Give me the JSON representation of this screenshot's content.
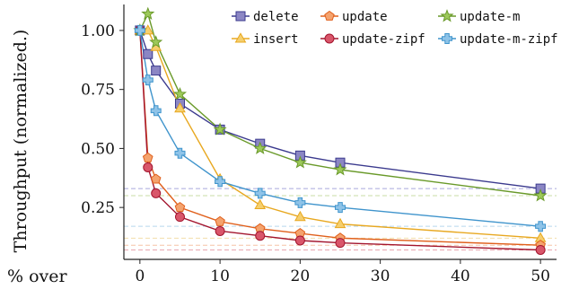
{
  "chart_data": {
    "type": "line",
    "ylabel": "Throughput (normalized.)",
    "xlabel": "% over",
    "xlim": [
      -2,
      52
    ],
    "ylim": [
      0.03,
      1.11
    ],
    "xticks": [
      0,
      10,
      20,
      30,
      40,
      50
    ],
    "yticks": [
      0.25,
      0.5,
      0.75,
      1.0
    ],
    "ytick_labels": [
      "0.25",
      "0.50",
      "0.75",
      "1.00"
    ],
    "grid": false,
    "legend_position": "top-right",
    "series": [
      {
        "name": "delete",
        "color": "#3b3a8e",
        "fill": "#8b86c4",
        "marker": "square",
        "x": [
          0,
          1,
          2,
          5,
          10,
          15,
          20,
          25,
          50
        ],
        "y": [
          1.0,
          0.9,
          0.83,
          0.69,
          0.58,
          0.52,
          0.47,
          0.44,
          0.33
        ]
      },
      {
        "name": "insert",
        "color": "#e8a820",
        "fill": "#f5cf6e",
        "marker": "triangle",
        "x": [
          0,
          1,
          2,
          5,
          10,
          15,
          20,
          25,
          50
        ],
        "y": [
          1.0,
          1.0,
          0.93,
          0.67,
          0.37,
          0.26,
          0.21,
          0.18,
          0.12
        ]
      },
      {
        "name": "update",
        "color": "#e0601c",
        "fill": "#f4a36e",
        "marker": "pentagon",
        "x": [
          0,
          1,
          2,
          5,
          10,
          15,
          20,
          25,
          50
        ],
        "y": [
          1.0,
          0.46,
          0.37,
          0.25,
          0.19,
          0.16,
          0.14,
          0.12,
          0.09
        ]
      },
      {
        "name": "update-zipf",
        "color": "#a3152e",
        "fill": "#d9566a",
        "marker": "circle",
        "x": [
          0,
          1,
          2,
          5,
          10,
          15,
          20,
          25,
          50
        ],
        "y": [
          1.0,
          0.42,
          0.31,
          0.21,
          0.15,
          0.13,
          0.11,
          0.1,
          0.07
        ]
      },
      {
        "name": "update-m",
        "color": "#6a9a2a",
        "fill": "#9dc95a",
        "marker": "star",
        "x": [
          0,
          1,
          2,
          5,
          10,
          15,
          20,
          25,
          50
        ],
        "y": [
          1.0,
          1.07,
          0.95,
          0.73,
          0.58,
          0.5,
          0.44,
          0.41,
          0.3
        ]
      },
      {
        "name": "update-m-zipf",
        "color": "#3f94cc",
        "fill": "#8ec3e8",
        "marker": "plus",
        "x": [
          0,
          1,
          2,
          5,
          10,
          15,
          20,
          25,
          50
        ],
        "y": [
          1.0,
          0.79,
          0.66,
          0.48,
          0.36,
          0.31,
          0.27,
          0.25,
          0.17
        ]
      }
    ],
    "reference_lines": [
      {
        "y": 0.33,
        "color": "#a9a6dc"
      },
      {
        "y": 0.3,
        "color": "#c8dca6"
      },
      {
        "y": 0.17,
        "color": "#b8d8ee"
      },
      {
        "y": 0.12,
        "color": "#f3ddaa"
      },
      {
        "y": 0.09,
        "color": "#f5c4a6"
      },
      {
        "y": 0.07,
        "color": "#e8a6b0"
      }
    ]
  }
}
